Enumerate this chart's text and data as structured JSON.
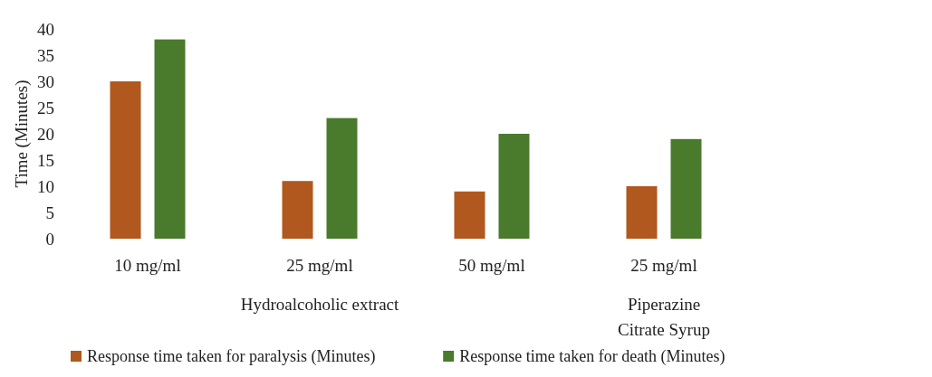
{
  "chart_data": {
    "type": "bar",
    "ylabel": "Time (Minutes)",
    "categories": [
      "10 mg/ml",
      "25 mg/ml",
      "50 mg/ml",
      "25 mg/ml"
    ],
    "series": [
      {
        "name": "Response time taken for paralysis (Minutes)",
        "color": "#b0581e",
        "values": [
          30,
          11,
          9,
          10
        ]
      },
      {
        "name": "Response time taken for death (Minutes)",
        "color": "#4a7a2c",
        "values": [
          38,
          23,
          20,
          19
        ]
      }
    ],
    "ylim": [
      0,
      40
    ],
    "yticks": [
      0,
      5,
      10,
      15,
      20,
      25,
      30,
      35,
      40
    ],
    "annotations": [
      "Hydroalcoholic extract",
      "Piperazine Citrate Syrup"
    ],
    "legend": "bottom"
  }
}
